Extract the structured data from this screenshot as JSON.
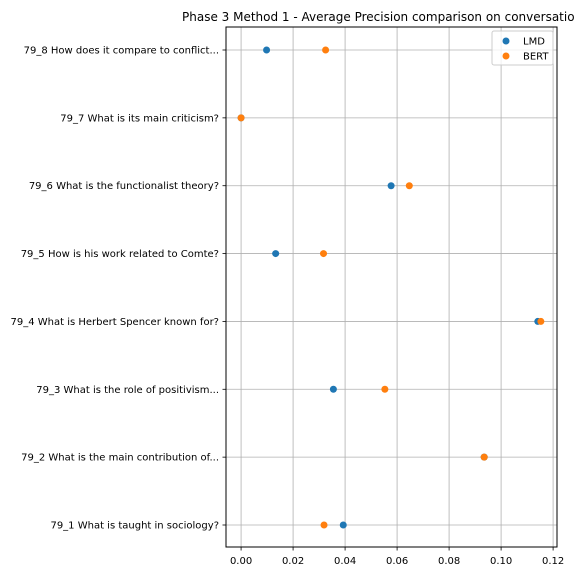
{
  "chart_data": {
    "type": "scatter",
    "orientation": "horizontal-categories",
    "title": "Phase 3 Method 1 - Average Precision comparison on conversatio",
    "xlabel": "",
    "ylabel": "",
    "xlim": [
      -0.0058,
      0.1215
    ],
    "x_ticks": [
      0.0,
      0.02,
      0.04,
      0.06,
      0.08,
      0.1,
      0.12
    ],
    "x_tick_labels": [
      "0.00",
      "0.02",
      "0.04",
      "0.06",
      "0.08",
      "0.10",
      "0.12"
    ],
    "grid": true,
    "legend_position": "top-right",
    "categories": [
      "79_8 How does it compare to conflict...",
      "79_7 What is its main criticism?",
      "79_6 What is the functionalist theory?",
      "79_5 How is his work related to Comte?",
      "79_4 What is Herbert Spencer known for?",
      "79_3 What is the role of positivism...",
      "79_2 What is the main contribution of...",
      "79_1 What is taught in sociology?"
    ],
    "series": [
      {
        "name": "LMD",
        "color": "#1f77b4",
        "values": [
          0.0098,
          0.0,
          0.0577,
          0.0133,
          0.1141,
          0.0355,
          0.0935,
          0.0393
        ]
      },
      {
        "name": "BERT",
        "color": "#ff7f0e",
        "values": [
          0.0325,
          0.0,
          0.0647,
          0.0317,
          0.1153,
          0.0553,
          0.0935,
          0.0319
        ]
      }
    ]
  }
}
